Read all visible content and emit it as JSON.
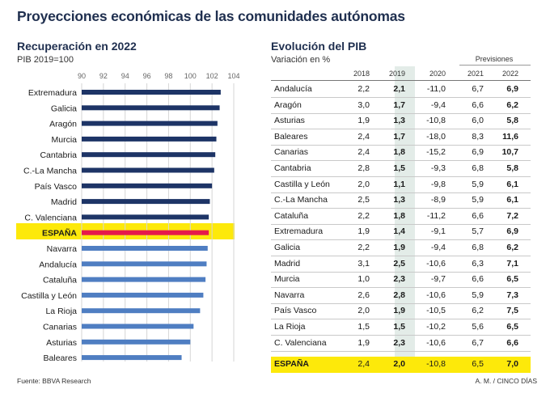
{
  "title": "Proyecciones económicas de las comunidades autónomas",
  "left": {
    "title": "Recuperación en 2022",
    "subtitle": "PIB 2019=100"
  },
  "right": {
    "title": "Evolución del PIB",
    "subtitle": "Variación en %",
    "previsiones_label": "Previsiones",
    "columns": [
      "2018",
      "2019",
      "2020",
      "2021",
      "2022"
    ]
  },
  "footer": {
    "source": "Fuente: BBVA Research",
    "credit": "A. M. / CINCO DÍAS"
  },
  "colors": {
    "bar": "#1d3466",
    "bar_light": "#4f7ec2",
    "bar_highlight": "#e6194b",
    "highlight": "#fde90a",
    "col_highlight": "#e3ece8"
  },
  "chart_data": [
    {
      "type": "bar",
      "orientation": "horizontal",
      "title": "Recuperación en 2022",
      "subtitle": "PIB 2019=100",
      "xlim": [
        90,
        104
      ],
      "xticks": [
        90,
        92,
        94,
        96,
        98,
        100,
        102,
        104
      ],
      "grid": true,
      "categories": [
        "Extremadura",
        "Galicia",
        "Aragón",
        "Murcia",
        "Cantabria",
        "C.-La Mancha",
        "País Vasco",
        "Madrid",
        "C. Valenciana",
        "ESPAÑA",
        "Navarra",
        "Andalucía",
        "Cataluña",
        "Castilla y León",
        "La Rioja",
        "Canarias",
        "Asturias",
        "Baleares"
      ],
      "values": [
        102.8,
        102.7,
        102.5,
        102.4,
        102.3,
        102.2,
        102.0,
        101.8,
        101.7,
        101.7,
        101.6,
        101.5,
        101.4,
        101.2,
        100.9,
        100.3,
        100.0,
        99.2
      ],
      "highlight": "ESPAÑA"
    },
    {
      "type": "table",
      "title": "Evolución del PIB",
      "subtitle": "Variación en %",
      "columns": [
        "2018",
        "2019",
        "2020",
        "2021",
        "2022"
      ],
      "rows": [
        {
          "name": "Andalucía",
          "values": [
            "2,2",
            "2,1",
            "-11,0",
            "6,7",
            "6,9"
          ]
        },
        {
          "name": "Aragón",
          "values": [
            "3,0",
            "1,7",
            "-9,4",
            "6,6",
            "6,2"
          ]
        },
        {
          "name": "Asturias",
          "values": [
            "1,9",
            "1,3",
            "-10,8",
            "6,0",
            "5,8"
          ]
        },
        {
          "name": "Baleares",
          "values": [
            "2,4",
            "1,7",
            "-18,0",
            "8,3",
            "11,6"
          ]
        },
        {
          "name": "Canarias",
          "values": [
            "2,4",
            "1,8",
            "-15,2",
            "6,9",
            "10,7"
          ]
        },
        {
          "name": "Cantabria",
          "values": [
            "2,8",
            "1,5",
            "-9,3",
            "6,8",
            "5,8"
          ]
        },
        {
          "name": "Castilla y León",
          "values": [
            "2,0",
            "1,1",
            "-9,8",
            "5,9",
            "6,1"
          ]
        },
        {
          "name": "C.-La Mancha",
          "values": [
            "2,5",
            "1,3",
            "-8,9",
            "5,9",
            "6,1"
          ]
        },
        {
          "name": "Cataluña",
          "values": [
            "2,2",
            "1,8",
            "-11,2",
            "6,6",
            "7,2"
          ]
        },
        {
          "name": "Extremadura",
          "values": [
            "1,9",
            "1,4",
            "-9,1",
            "5,7",
            "6,9"
          ]
        },
        {
          "name": "Galicia",
          "values": [
            "2,2",
            "1,9",
            "-9,4",
            "6,8",
            "6,2"
          ]
        },
        {
          "name": "Madrid",
          "values": [
            "3,1",
            "2,5",
            "-10,6",
            "6,3",
            "7,1"
          ]
        },
        {
          "name": "Murcia",
          "values": [
            "1,0",
            "2,3",
            "-9,7",
            "6,6",
            "6,5"
          ]
        },
        {
          "name": "Navarra",
          "values": [
            "2,6",
            "2,8",
            "-10,6",
            "5,9",
            "7,3"
          ]
        },
        {
          "name": "País Vasco",
          "values": [
            "2,0",
            "1,9",
            "-10,5",
            "6,2",
            "7,5"
          ]
        },
        {
          "name": "La Rioja",
          "values": [
            "1,5",
            "1,5",
            "-10,2",
            "5,6",
            "6,5"
          ]
        },
        {
          "name": "C. Valenciana",
          "values": [
            "1,9",
            "2,3",
            "-10,6",
            "6,7",
            "6,6"
          ]
        },
        {
          "name": "ESPAÑA",
          "values": [
            "2,4",
            "2,0",
            "-10,8",
            "6,5",
            "7,0"
          ]
        }
      ],
      "highlight": "ESPAÑA"
    }
  ]
}
